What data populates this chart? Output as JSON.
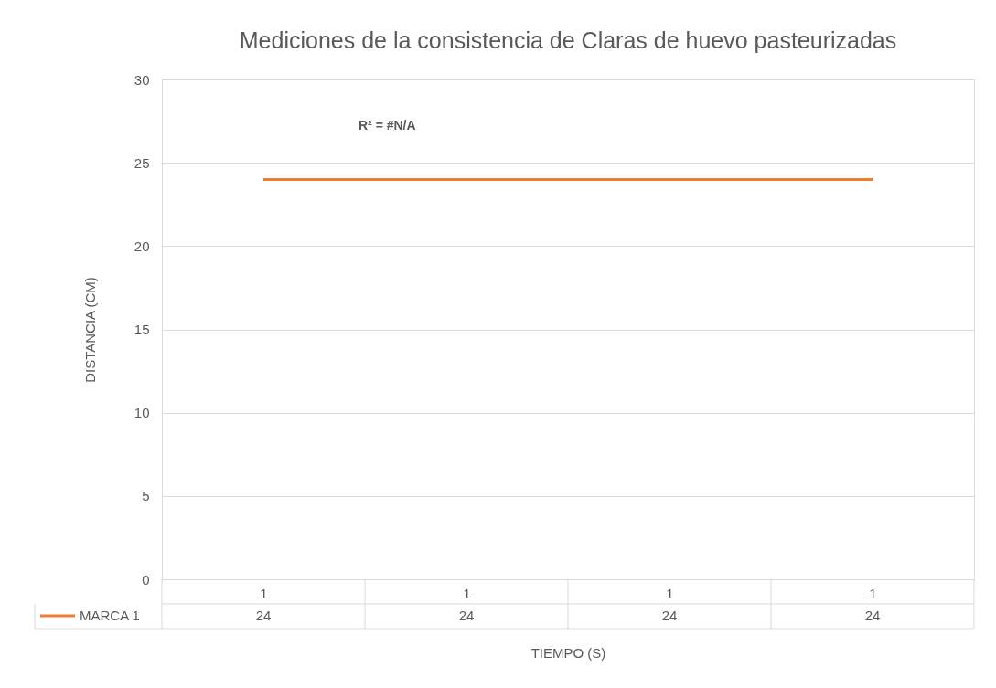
{
  "chart_data": {
    "type": "line",
    "title": "Mediciones de la consistencia de Claras de huevo pasteurizadas",
    "xlabel": "TIEMPO (S)",
    "ylabel": "DISTANCIA (CM)",
    "categories": [
      "1",
      "1",
      "1",
      "1"
    ],
    "series": [
      {
        "name": "MARCA 1",
        "color": "#ed7d31",
        "values": [
          24,
          24,
          24,
          24
        ]
      }
    ],
    "ylim": [
      0,
      30
    ],
    "yticks": [
      0,
      5,
      10,
      15,
      20,
      25,
      30
    ],
    "grid": "y",
    "data_labels": true,
    "marker": "none",
    "annotations": [
      "R² = #N/A"
    ]
  }
}
